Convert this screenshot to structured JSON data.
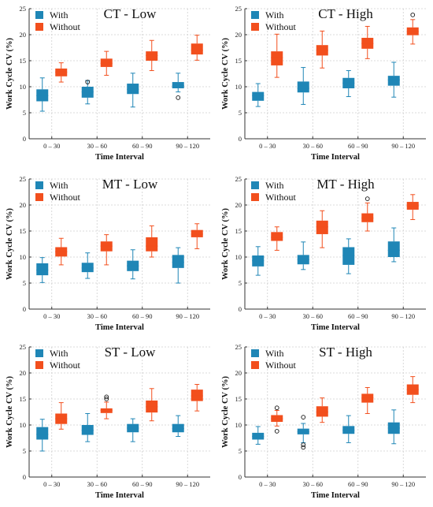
{
  "colors": {
    "with": "#1f86b6",
    "without": "#f24f1d",
    "grid": "#cfcfcf",
    "axis": "#333333"
  },
  "chart_data": [
    {
      "type": "box",
      "title": "CT - Low",
      "xlabel": "Time Interval",
      "ylabel": "Work Cycle CV (%)",
      "ylim": [
        0,
        25
      ],
      "yticks": [
        "0",
        "5",
        "10",
        "15",
        "20",
        "25"
      ],
      "categories": [
        "0 – 30",
        "30 – 60",
        "60 – 90",
        "90 – 120"
      ],
      "legend": {
        "position": "top-left",
        "entries": [
          "With",
          "Without"
        ]
      },
      "series": [
        {
          "name": "With",
          "boxes": [
            {
              "min": 5.3,
              "q1": 7.2,
              "median": 8.3,
              "q3": 9.5,
              "max": 11.7,
              "outliers": []
            },
            {
              "min": 6.7,
              "q1": 7.9,
              "median": 9.0,
              "q3": 10.0,
              "max": 11.2,
              "outliers": [
                10.9
              ]
            },
            {
              "min": 6.1,
              "q1": 8.6,
              "median": 9.5,
              "q3": 10.6,
              "max": 12.6,
              "outliers": []
            },
            {
              "min": 9.0,
              "q1": 9.7,
              "median": 10.2,
              "q3": 10.9,
              "max": 12.6,
              "outliers": [
                7.9
              ]
            }
          ]
        },
        {
          "name": "Without",
          "boxes": [
            {
              "min": 10.9,
              "q1": 12.0,
              "median": 12.8,
              "q3": 13.5,
              "max": 14.6,
              "outliers": []
            },
            {
              "min": 12.2,
              "q1": 13.8,
              "median": 14.5,
              "q3": 15.4,
              "max": 16.8,
              "outliers": []
            },
            {
              "min": 13.1,
              "q1": 15.0,
              "median": 16.0,
              "q3": 16.8,
              "max": 18.9,
              "outliers": []
            },
            {
              "min": 15.1,
              "q1": 16.2,
              "median": 17.0,
              "q3": 18.3,
              "max": 19.9,
              "outliers": []
            }
          ]
        }
      ]
    },
    {
      "type": "box",
      "title": "CT - High",
      "xlabel": "Time Interval",
      "ylabel": "Work Cycle CV (%)",
      "ylim": [
        0,
        25
      ],
      "yticks": [
        "0",
        "5",
        "10",
        "15",
        "20",
        "25"
      ],
      "categories": [
        "0 – 30",
        "30 – 60",
        "60 – 90",
        "90 – 120"
      ],
      "legend": {
        "position": "top-left",
        "entries": [
          "With",
          "Without"
        ]
      },
      "series": [
        {
          "name": "With",
          "boxes": [
            {
              "min": 6.2,
              "q1": 7.3,
              "median": 8.3,
              "q3": 9.0,
              "max": 10.6,
              "outliers": []
            },
            {
              "min": 6.6,
              "q1": 8.9,
              "median": 9.7,
              "q3": 11.0,
              "max": 13.7,
              "outliers": []
            },
            {
              "min": 8.1,
              "q1": 9.7,
              "median": 10.7,
              "q3": 11.7,
              "max": 13.1,
              "outliers": []
            },
            {
              "min": 8.0,
              "q1": 10.2,
              "median": 11.3,
              "q3": 12.1,
              "max": 14.7,
              "outliers": []
            }
          ]
        },
        {
          "name": "Without",
          "boxes": [
            {
              "min": 11.8,
              "q1": 14.1,
              "median": 15.6,
              "q3": 16.8,
              "max": 20.1,
              "outliers": []
            },
            {
              "min": 13.6,
              "q1": 16.0,
              "median": 17.0,
              "q3": 18.0,
              "max": 20.7,
              "outliers": []
            },
            {
              "min": 15.4,
              "q1": 17.3,
              "median": 18.3,
              "q3": 19.4,
              "max": 21.6,
              "outliers": []
            },
            {
              "min": 18.2,
              "q1": 19.9,
              "median": 20.6,
              "q3": 21.4,
              "max": 22.9,
              "outliers": [
                23.8
              ]
            }
          ]
        }
      ]
    },
    {
      "type": "box",
      "title": "MT - Low",
      "xlabel": "Time Interval",
      "ylabel": "Work Cycle CV (%)",
      "ylim": [
        0,
        25
      ],
      "yticks": [
        "0",
        "5",
        "10",
        "15",
        "20",
        "25"
      ],
      "categories": [
        "0 – 30",
        "30 – 60",
        "60 – 90",
        "90 – 120"
      ],
      "legend": {
        "position": "top-left",
        "entries": [
          "With",
          "Without"
        ]
      },
      "series": [
        {
          "name": "With",
          "boxes": [
            {
              "min": 5.1,
              "q1": 6.5,
              "median": 7.5,
              "q3": 8.8,
              "max": 9.9,
              "outliers": []
            },
            {
              "min": 5.9,
              "q1": 7.1,
              "median": 7.9,
              "q3": 8.9,
              "max": 10.8,
              "outliers": []
            },
            {
              "min": 5.8,
              "q1": 7.3,
              "median": 8.3,
              "q3": 9.3,
              "max": 11.4,
              "outliers": []
            },
            {
              "min": 5.0,
              "q1": 7.9,
              "median": 9.0,
              "q3": 10.4,
              "max": 11.8,
              "outliers": []
            }
          ]
        },
        {
          "name": "Without",
          "boxes": [
            {
              "min": 8.5,
              "q1": 10.1,
              "median": 11.0,
              "q3": 11.9,
              "max": 13.6,
              "outliers": []
            },
            {
              "min": 8.5,
              "q1": 11.1,
              "median": 12.1,
              "q3": 13.0,
              "max": 14.3,
              "outliers": []
            },
            {
              "min": 10.0,
              "q1": 11.1,
              "median": 12.1,
              "q3": 13.8,
              "max": 16.0,
              "outliers": []
            },
            {
              "min": 11.6,
              "q1": 13.8,
              "median": 14.4,
              "q3": 15.2,
              "max": 16.4,
              "outliers": []
            }
          ]
        }
      ]
    },
    {
      "type": "box",
      "title": "MT - High",
      "xlabel": "Time Interval",
      "ylabel": "Work Cycle CV (%)",
      "ylim": [
        0,
        25
      ],
      "yticks": [
        "0",
        "5",
        "10",
        "15",
        "20",
        "25"
      ],
      "categories": [
        "0 – 30",
        "30 – 60",
        "60 – 90",
        "90 – 120"
      ],
      "legend": {
        "position": "top-left",
        "entries": [
          "With",
          "Without"
        ]
      },
      "series": [
        {
          "name": "With",
          "boxes": [
            {
              "min": 6.5,
              "q1": 8.2,
              "median": 9.3,
              "q3": 10.3,
              "max": 12.0,
              "outliers": []
            },
            {
              "min": 7.6,
              "q1": 8.6,
              "median": 9.5,
              "q3": 10.4,
              "max": 12.9,
              "outliers": []
            },
            {
              "min": 6.8,
              "q1": 8.5,
              "median": 10.3,
              "q3": 11.9,
              "max": 13.5,
              "outliers": []
            },
            {
              "min": 9.1,
              "q1": 10.0,
              "median": 11.3,
              "q3": 13.0,
              "max": 15.6,
              "outliers": []
            }
          ]
        },
        {
          "name": "Without",
          "boxes": [
            {
              "min": 11.3,
              "q1": 13.1,
              "median": 13.8,
              "q3": 14.8,
              "max": 15.8,
              "outliers": []
            },
            {
              "min": 11.8,
              "q1": 14.4,
              "median": 15.8,
              "q3": 17.0,
              "max": 18.9,
              "outliers": []
            },
            {
              "min": 15.0,
              "q1": 16.7,
              "median": 17.5,
              "q3": 18.4,
              "max": 20.4,
              "outliers": [
                21.2
              ]
            },
            {
              "min": 17.2,
              "q1": 19.1,
              "median": 19.8,
              "q3": 20.6,
              "max": 22.0,
              "outliers": []
            }
          ]
        }
      ]
    },
    {
      "type": "box",
      "title": "ST - Low",
      "xlabel": "Time Interval",
      "ylabel": "Work Cycle CV (%)",
      "ylim": [
        0,
        25
      ],
      "yticks": [
        "0",
        "5",
        "10",
        "15",
        "20",
        "25"
      ],
      "categories": [
        "0 – 30",
        "30 – 60",
        "60 – 90",
        "90 – 120"
      ],
      "legend": {
        "position": "top-left",
        "entries": [
          "With",
          "Without"
        ]
      },
      "series": [
        {
          "name": "With",
          "boxes": [
            {
              "min": 5.0,
              "q1": 7.2,
              "median": 8.2,
              "q3": 9.6,
              "max": 11.1,
              "outliers": []
            },
            {
              "min": 6.8,
              "q1": 8.1,
              "median": 9.0,
              "q3": 10.0,
              "max": 12.2,
              "outliers": []
            },
            {
              "min": 6.8,
              "q1": 8.6,
              "median": 9.4,
              "q3": 10.2,
              "max": 11.2,
              "outliers": []
            },
            {
              "min": 7.8,
              "q1": 8.6,
              "median": 9.3,
              "q3": 10.2,
              "max": 11.8,
              "outliers": []
            }
          ]
        },
        {
          "name": "Without",
          "boxes": [
            {
              "min": 9.2,
              "q1": 10.2,
              "median": 11.2,
              "q3": 12.2,
              "max": 14.3,
              "outliers": []
            },
            {
              "min": 11.2,
              "q1": 12.3,
              "median": 12.8,
              "q3": 13.2,
              "max": 14.4,
              "outliers": [
                15.0,
                15.4
              ]
            },
            {
              "min": 10.8,
              "q1": 12.4,
              "median": 13.5,
              "q3": 14.7,
              "max": 17.0,
              "outliers": []
            },
            {
              "min": 12.7,
              "q1": 14.6,
              "median": 15.6,
              "q3": 16.8,
              "max": 17.8,
              "outliers": []
            }
          ]
        }
      ]
    },
    {
      "type": "box",
      "title": "ST - High",
      "xlabel": "Time Interval",
      "ylabel": "Work Cycle CV (%)",
      "ylim": [
        0,
        25
      ],
      "yticks": [
        "0",
        "5",
        "10",
        "15",
        "20",
        "25"
      ],
      "categories": [
        "0 – 30",
        "30 – 60",
        "60 – 90",
        "90 – 120"
      ],
      "legend": {
        "position": "top-left",
        "entries": [
          "With",
          "Without"
        ]
      },
      "series": [
        {
          "name": "With",
          "boxes": [
            {
              "min": 6.3,
              "q1": 7.2,
              "median": 7.8,
              "q3": 8.5,
              "max": 9.7,
              "outliers": []
            },
            {
              "min": 6.6,
              "q1": 8.2,
              "median": 8.7,
              "q3": 9.3,
              "max": 10.3,
              "outliers": [
                11.5,
                6.2,
                5.7
              ]
            },
            {
              "min": 6.6,
              "q1": 8.3,
              "median": 9.0,
              "q3": 9.8,
              "max": 11.8,
              "outliers": []
            },
            {
              "min": 6.4,
              "q1": 8.3,
              "median": 9.4,
              "q3": 10.5,
              "max": 12.9,
              "outliers": []
            }
          ]
        },
        {
          "name": "Without",
          "boxes": [
            {
              "min": 9.8,
              "q1": 10.6,
              "median": 11.2,
              "q3": 11.9,
              "max": 12.8,
              "outliers": [
                13.3,
                8.8
              ]
            },
            {
              "min": 10.5,
              "q1": 11.6,
              "median": 12.5,
              "q3": 13.6,
              "max": 15.2,
              "outliers": []
            },
            {
              "min": 12.2,
              "q1": 14.3,
              "median": 15.2,
              "q3": 16.0,
              "max": 17.2,
              "outliers": []
            },
            {
              "min": 14.3,
              "q1": 15.8,
              "median": 16.8,
              "q3": 17.8,
              "max": 19.3,
              "outliers": []
            }
          ]
        }
      ]
    }
  ]
}
